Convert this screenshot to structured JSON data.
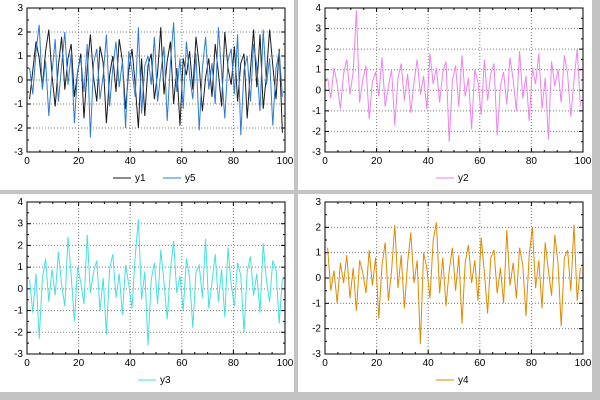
{
  "window": {
    "background": "#c3c3c3",
    "plot_background": "#ffffff",
    "grid_color": "#7a7a7a",
    "frame_color": "#000000"
  },
  "chart_data": [
    {
      "type": "line",
      "title": "",
      "xlabel": "",
      "ylabel": "",
      "xlim": [
        0,
        100
      ],
      "xticks": [
        0,
        20,
        40,
        60,
        80,
        100
      ],
      "x_minor_step": 5,
      "ylim": [
        -3,
        3
      ],
      "yticks": [
        -3,
        -2,
        -1,
        0,
        1,
        2,
        3
      ],
      "grid": true,
      "legend_position": "bottom",
      "series": [
        {
          "name": "y1",
          "color": "#1a1a1a",
          "values": [
            -0.8,
            0.4,
            1.6,
            0.9,
            -0.3,
            1.2,
            2.1,
            0.2,
            -1.1,
            0.6,
            1.8,
            -0.4,
            0.9,
            1.5,
            -0.7,
            0.3,
            1.1,
            -1.6,
            0.5,
            1.9,
            0.1,
            -0.9,
            1.4,
            0.7,
            -1.8,
            0.2,
            1.0,
            -0.5,
            1.7,
            0.8,
            -1.2,
            0.4,
            1.3,
            -0.2,
            -2.0,
            0.9,
            -1.5,
            0.6,
            1.1,
            -0.8,
            0.3,
            2.2,
            -0.6,
            0.8,
            1.6,
            -1.0,
            0.5,
            -1.9,
            0.9,
            0.2,
            1.2,
            -0.4,
            1.8,
            0.6,
            -1.3,
            0.1,
            0.9,
            -0.7,
            1.5,
            0.3,
            -1.1,
            2.0,
            0.5,
            -0.2,
            1.4,
            -0.9,
            0.7,
            1.1,
            -1.6,
            0.4,
            2.1,
            -0.3,
            1.9,
            -1.2,
            0.2,
            2.1,
            0.6,
            -0.8,
            1.3,
            -2.2
          ]
        },
        {
          "name": "y5",
          "color": "#2e7cd6",
          "values": [
            0.5,
            -0.6,
            1.2,
            2.3,
            -0.4,
            0.8,
            -1.5,
            0.3,
            1.7,
            -0.9,
            0.6,
            2.0,
            -0.2,
            1.1,
            -1.8,
            0.4,
            0.9,
            -0.5,
            1.5,
            -2.4,
            0.7,
            1.3,
            -0.8,
            0.2,
            1.9,
            -1.1,
            0.5,
            1.6,
            -0.3,
            0.8,
            -2.0,
            1.2,
            0.4,
            -0.7,
            2.2,
            -1.4,
            0.6,
            1.0,
            -0.2,
            1.8,
            -0.9,
            0.3,
            1.4,
            -1.7,
            0.7,
            2.4,
            -0.5,
            0.9,
            -1.2,
            1.6,
            0.2,
            -0.8,
            1.1,
            -2.1,
            0.5,
            1.8,
            -0.4,
            0.7,
            -1.0,
            2.2,
            0.3,
            -1.6,
            0.8,
            1.3,
            -0.6,
            1.9,
            -2.3,
            0.4,
            1.0,
            -0.9,
            1.5,
            0.6,
            -1.3,
            2.1,
            -0.2,
            0.9,
            -1.9,
            0.5,
            1.2,
            -0.7
          ]
        }
      ]
    },
    {
      "type": "line",
      "title": "",
      "xlabel": "",
      "ylabel": "",
      "xlim": [
        0,
        100
      ],
      "xticks": [
        0,
        20,
        40,
        60,
        80,
        100
      ],
      "x_minor_step": 5,
      "ylim": [
        -3,
        4
      ],
      "yticks": [
        -3,
        -2,
        -1,
        0,
        1,
        2,
        3,
        4
      ],
      "grid": true,
      "legend_position": "bottom",
      "series": [
        {
          "name": "y2",
          "color": "#ee82ee",
          "values": [
            0.6,
            -0.4,
            1.1,
            0.3,
            -0.9,
            0.8,
            1.5,
            -0.2,
            0.9,
            3.9,
            -0.6,
            0.5,
            1.2,
            -1.4,
            0.4,
            0.9,
            -0.3,
            1.6,
            -0.8,
            0.2,
            1.0,
            -1.7,
            0.6,
            1.3,
            -0.5,
            0.8,
            -1.1,
            0.4,
            1.5,
            -0.2,
            0.7,
            -0.9,
            1.8,
            0.3,
            1.1,
            -0.6,
            0.9,
            1.4,
            -2.5,
            0.5,
            1.2,
            -0.8,
            1.7,
            -0.3,
            0.6,
            -1.9,
            1.0,
            0.4,
            -1.2,
            1.5,
            -0.5,
            0.8,
            1.3,
            -2.2,
            0.2,
            0.9,
            -0.7,
            1.6,
            0.5,
            -1.0,
            1.9,
            -0.4,
            0.7,
            -1.5,
            1.1,
            0.3,
            1.8,
            -0.9,
            0.6,
            -2.4,
            1.4,
            0.2,
            1.0,
            -0.6,
            1.7,
            0.8,
            -1.3,
            0.5,
            2.0,
            -0.8
          ]
        }
      ]
    },
    {
      "type": "line",
      "title": "",
      "xlabel": "",
      "ylabel": "",
      "xlim": [
        0,
        100
      ],
      "xticks": [
        0,
        20,
        40,
        60,
        80,
        100
      ],
      "x_minor_step": 5,
      "ylim": [
        -3,
        4
      ],
      "yticks": [
        -3,
        -2,
        -1,
        0,
        1,
        2,
        3,
        4
      ],
      "grid": true,
      "legend_position": "bottom",
      "series": [
        {
          "name": "y3",
          "color": "#45e0e0",
          "values": [
            0.4,
            -1.1,
            0.7,
            -2.3,
            0.5,
            1.4,
            -0.6,
            0.9,
            -0.3,
            1.7,
            0.2,
            -0.8,
            2.4,
            0.6,
            -1.5,
            1.0,
            0.3,
            -0.7,
            2.5,
            -0.2,
            0.8,
            1.3,
            -1.0,
            0.5,
            -2.1,
            0.9,
            1.6,
            -0.4,
            0.7,
            -1.2,
            1.1,
            0.2,
            -0.9,
            1.5,
            3.2,
            -0.5,
            0.8,
            -2.6,
            0.4,
            1.2,
            -0.7,
            1.8,
            0.3,
            -1.4,
            0.9,
            2.2,
            -0.2,
            0.6,
            -1.0,
            1.4,
            0.5,
            -1.8,
            0.8,
            1.1,
            -0.4,
            2.3,
            -0.9,
            0.3,
            1.6,
            -0.6,
            0.9,
            -1.3,
            1.9,
            0.2,
            -0.8,
            1.2,
            0.6,
            -2.0,
            0.8,
            1.5,
            -0.3,
            0.7,
            -1.1,
            2.1,
            0.4,
            -0.6,
            1.3,
            0.9,
            -1.6,
            0.5
          ]
        }
      ]
    },
    {
      "type": "line",
      "title": "",
      "xlabel": "",
      "ylabel": "",
      "xlim": [
        0,
        100
      ],
      "xticks": [
        0,
        20,
        40,
        60,
        80,
        100
      ],
      "x_minor_step": 5,
      "ylim": [
        -3,
        3
      ],
      "yticks": [
        -3,
        -2,
        -1,
        0,
        1,
        2,
        3
      ],
      "grid": true,
      "legend_position": "bottom",
      "series": [
        {
          "name": "y4",
          "color": "#e08a00",
          "values": [
            1.2,
            -0.5,
            0.3,
            -1.0,
            0.6,
            -0.2,
            0.9,
            -0.8,
            0.4,
            -1.3,
            0.7,
            0.2,
            -0.6,
            1.1,
            -0.3,
            0.8,
            -1.6,
            0.5,
            1.4,
            -0.9,
            0.3,
            2.1,
            -0.4,
            0.9,
            -1.2,
            0.6,
            1.8,
            -0.2,
            0.7,
            -2.6,
            1.0,
            0.4,
            -0.8,
            1.5,
            2.2,
            -0.6,
            0.8,
            -1.1,
            0.3,
            1.2,
            -0.5,
            0.9,
            -1.8,
            0.6,
            1.3,
            -0.2,
            0.7,
            -0.9,
            1.6,
            0.2,
            -1.4,
            0.8,
            1.1,
            -0.6,
            0.4,
            -1.0,
            1.9,
            -0.3,
            0.6,
            -0.8,
            1.2,
            0.5,
            -1.5,
            0.9,
            2.0,
            -0.4,
            0.7,
            -1.2,
            1.4,
            0.3,
            -0.7,
            1.7,
            0.6,
            -1.9,
            0.8,
            1.1,
            -0.5,
            2.1,
            -0.9,
            0.4
          ]
        }
      ]
    }
  ]
}
